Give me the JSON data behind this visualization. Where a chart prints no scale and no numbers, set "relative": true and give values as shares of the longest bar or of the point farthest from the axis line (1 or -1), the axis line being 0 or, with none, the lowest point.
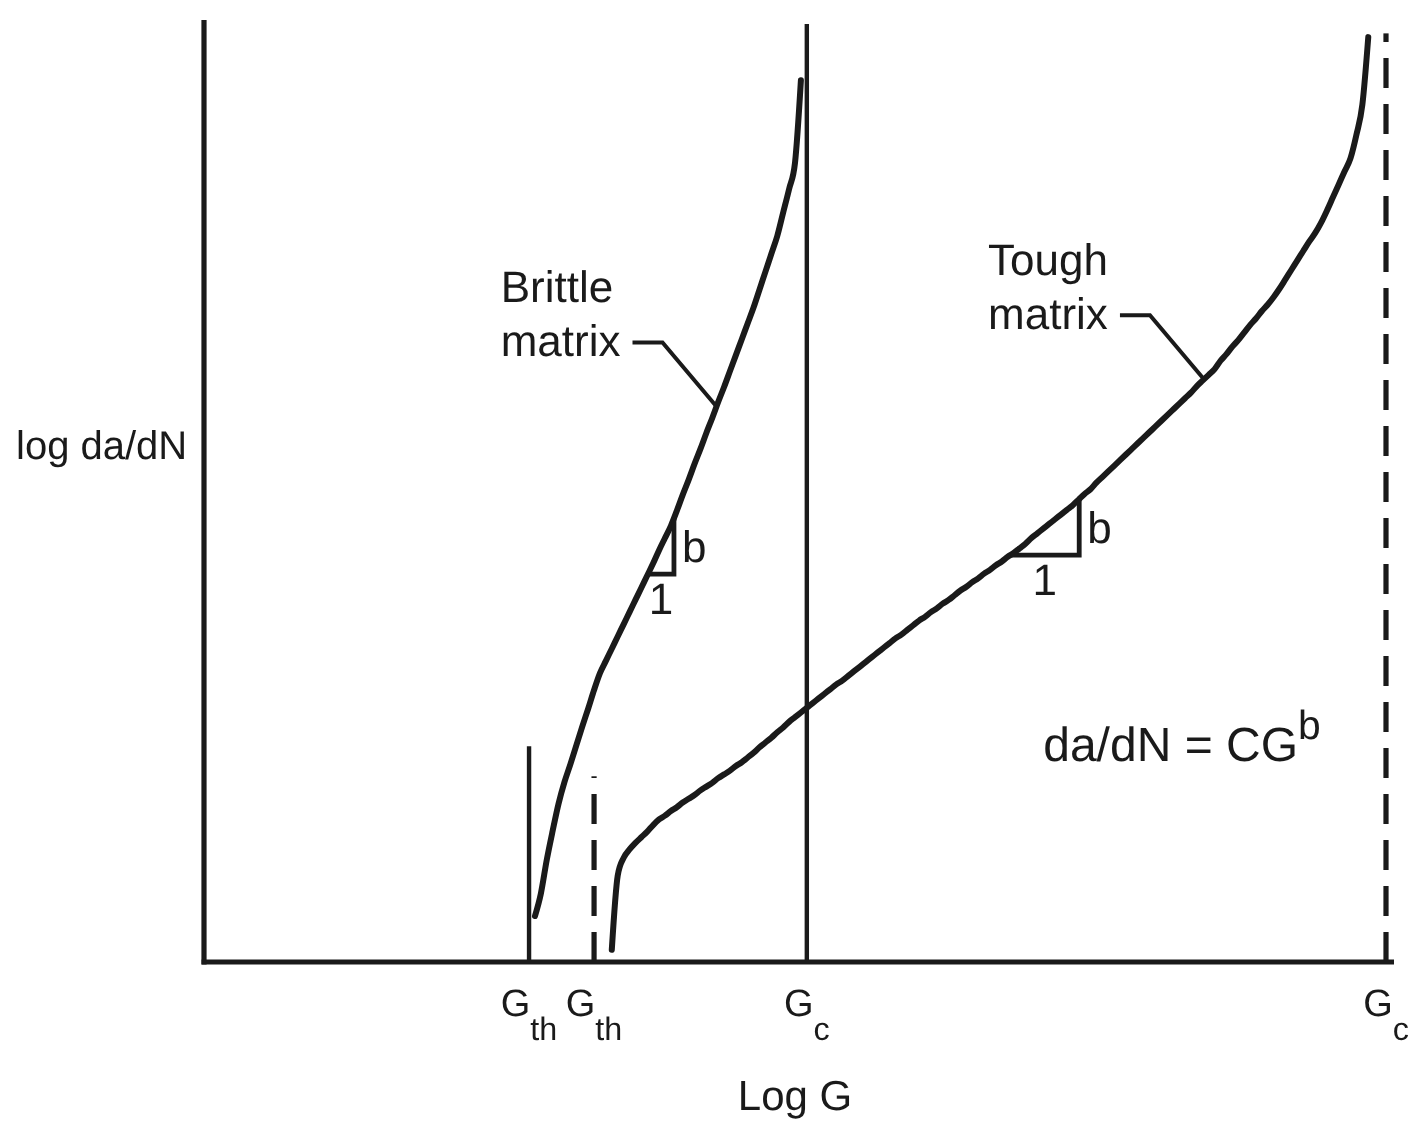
{
  "chart_data": {
    "type": "line",
    "relative": true,
    "xlabel": "Log G",
    "ylabel": "log da/dN",
    "categories": [
      null,
      null,
      null,
      null,
      null,
      null,
      null,
      null,
      null,
      null,
      null,
      null,
      null,
      null,
      null,
      null,
      null,
      null,
      null,
      null,
      null,
      null,
      null,
      null,
      null,
      null,
      null,
      null,
      null,
      null,
      null,
      null,
      null,
      null,
      null,
      null,
      null,
      null,
      null,
      null,
      null,
      null,
      null,
      null,
      null,
      null,
      null,
      null,
      null,
      null,
      null,
      null,
      null,
      null,
      null,
      "G$_{th}$",
      null,
      null,
      null,
      null,
      null,
      null,
      null,
      null,
      null,
      null,
      "G$_{th}$",
      null,
      null,
      null,
      null,
      null,
      null,
      null,
      null,
      null,
      null,
      null,
      null,
      null,
      null,
      null,
      null,
      null,
      null,
      null,
      null,
      null,
      null,
      null,
      null,
      null,
      null,
      null,
      null,
      null,
      null,
      null,
      null,
      null,
      null,
      null,
      "G$_{c}$",
      null,
      null,
      null,
      null,
      null,
      null,
      null,
      null,
      null,
      null,
      null,
      null,
      null,
      null,
      null,
      null,
      null,
      null,
      null,
      null,
      null,
      null,
      null,
      null,
      null,
      null,
      null,
      null,
      null,
      null,
      null,
      null,
      null,
      null,
      null,
      null,
      null,
      null,
      null,
      null,
      null,
      null,
      null,
      null,
      null,
      null,
      null,
      null,
      null,
      null,
      null,
      null,
      null,
      null,
      null,
      null,
      null,
      null,
      null,
      null,
      null,
      null,
      null,
      null,
      null,
      null,
      null,
      null,
      null,
      null,
      null,
      null,
      null,
      null,
      null,
      null,
      null,
      null,
      null,
      null,
      null,
      null,
      null,
      null,
      null,
      null,
      null,
      null,
      null,
      null,
      null,
      null,
      null,
      null,
      null,
      null,
      null,
      "G$_{c}$"
    ],
    "series": [
      {
        "name": "Brittle matrix",
        "color": "#1a1a1a",
        "values": [
          null,
          null,
          null,
          null,
          null,
          null,
          null,
          null,
          null,
          null,
          null,
          null,
          null,
          null,
          null,
          null,
          null,
          null,
          null,
          null,
          null,
          null,
          null,
          null,
          null,
          null,
          null,
          null,
          null,
          null,
          null,
          null,
          null,
          null,
          null,
          null,
          null,
          null,
          null,
          null,
          null,
          null,
          null,
          null,
          null,
          null,
          null,
          null,
          null,
          null,
          null,
          null,
          null,
          null,
          null,
          null,
          0.049,
          0.073,
          0.109,
          0.14,
          0.169,
          0.192,
          0.211,
          0.231,
          0.251,
          0.27,
          0.29,
          0.308,
          0.321,
          0.334,
          0.347,
          0.36,
          0.373,
          0.386,
          0.399,
          0.412,
          0.425,
          0.439,
          0.452,
          0.465,
          0.481,
          0.498,
          0.514,
          0.531,
          0.547,
          0.564,
          0.58,
          0.597,
          0.613,
          0.63,
          0.647,
          0.664,
          0.681,
          0.698,
          0.717,
          0.736,
          0.755,
          0.774,
          0.799,
          0.824,
          0.852,
          0.94,
          null,
          null,
          null,
          null,
          null,
          null,
          null,
          null,
          null,
          null,
          null,
          null,
          null,
          null,
          null,
          null,
          null,
          null,
          null,
          null,
          null,
          null,
          null,
          null,
          null,
          null,
          null,
          null,
          null,
          null,
          null,
          null,
          null,
          null,
          null,
          null,
          null,
          null,
          null,
          null,
          null,
          null,
          null,
          null,
          null,
          null,
          null,
          null,
          null,
          null,
          null,
          null,
          null,
          null,
          null,
          null,
          null,
          null,
          null,
          null,
          null,
          null,
          null,
          null,
          null,
          null,
          null,
          null,
          null,
          null,
          null,
          null,
          null,
          null,
          null,
          null,
          null,
          null,
          null,
          null,
          null,
          null,
          null,
          null,
          null,
          null,
          null,
          null,
          null,
          null,
          null,
          null,
          null,
          null,
          null,
          null,
          null,
          null,
          null
        ]
      },
      {
        "name": "Tough matrix",
        "color": "#1a1a1a",
        "values": [
          null,
          null,
          null,
          null,
          null,
          null,
          null,
          null,
          null,
          null,
          null,
          null,
          null,
          null,
          null,
          null,
          null,
          null,
          null,
          null,
          null,
          null,
          null,
          null,
          null,
          null,
          null,
          null,
          null,
          null,
          null,
          null,
          null,
          null,
          null,
          null,
          null,
          null,
          null,
          null,
          null,
          null,
          null,
          null,
          null,
          null,
          null,
          null,
          null,
          null,
          null,
          null,
          null,
          null,
          null,
          null,
          null,
          null,
          null,
          null,
          null,
          null,
          null,
          null,
          null,
          null,
          null,
          null,
          null,
          0.013,
          0.092,
          0.111,
          0.12,
          0.127,
          0.133,
          0.139,
          0.146,
          0.152,
          0.156,
          0.161,
          0.165,
          0.17,
          0.174,
          0.178,
          0.183,
          0.187,
          0.191,
          0.196,
          0.2,
          0.204,
          0.209,
          0.213,
          0.218,
          0.223,
          0.229,
          0.234,
          0.239,
          0.245,
          0.25,
          0.256,
          0.261,
          0.266,
          0.271,
          0.276,
          0.281,
          0.286,
          0.291,
          0.296,
          0.3,
          0.305,
          0.31,
          0.315,
          0.32,
          0.325,
          0.33,
          0.335,
          0.34,
          0.345,
          0.349,
          0.354,
          0.359,
          0.364,
          0.368,
          0.373,
          0.377,
          0.382,
          0.386,
          0.391,
          0.396,
          0.4,
          0.405,
          0.409,
          0.414,
          0.418,
          0.423,
          0.427,
          0.432,
          0.436,
          0.441,
          0.446,
          0.452,
          0.457,
          0.462,
          0.467,
          0.472,
          0.477,
          0.482,
          0.487,
          0.493,
          0.499,
          0.504,
          0.511,
          0.517,
          0.523,
          0.529,
          0.535,
          0.541,
          0.547,
          0.553,
          0.559,
          0.565,
          0.571,
          0.577,
          0.583,
          0.589,
          0.595,
          0.601,
          0.607,
          0.614,
          0.62,
          0.626,
          0.632,
          0.641,
          0.648,
          0.656,
          0.663,
          0.671,
          0.679,
          0.686,
          0.694,
          0.701,
          0.709,
          0.718,
          0.728,
          0.738,
          0.748,
          0.758,
          0.768,
          0.777,
          0.788,
          0.801,
          0.815,
          0.829,
          0.843,
          0.857,
          0.882,
          0.914,
          0.986,
          null,
          null,
          null
        ]
      },
      {
        "type": "bar",
        "color": "#1a1a1a",
        "values": [
          null,
          null,
          null,
          null,
          null,
          null,
          null,
          null,
          null,
          null,
          null,
          null,
          null,
          null,
          null,
          null,
          null,
          null,
          null,
          null,
          null,
          null,
          null,
          null,
          null,
          null,
          null,
          null,
          null,
          null,
          null,
          null,
          null,
          null,
          null,
          null,
          null,
          null,
          null,
          null,
          null,
          null,
          null,
          null,
          null,
          null,
          null,
          null,
          null,
          null,
          null,
          null,
          null,
          null,
          null,
          0.23,
          null,
          null,
          null,
          null,
          null,
          null,
          null,
          null,
          null,
          null,
          null,
          null,
          null,
          null,
          null,
          null,
          null,
          null,
          null,
          null,
          null,
          null,
          null,
          null,
          null,
          null,
          null,
          null,
          null,
          null,
          null,
          null,
          null,
          null,
          null,
          null,
          null,
          null,
          null,
          null,
          null,
          null,
          null,
          null,
          null,
          null,
          null,
          null,
          null,
          null,
          null,
          null,
          null,
          null,
          null,
          null,
          null,
          null,
          null,
          null,
          null,
          null,
          null,
          null,
          null,
          null,
          null,
          null,
          null,
          null,
          null,
          null,
          null,
          null,
          null,
          null,
          null,
          null,
          null,
          null,
          null,
          null,
          null,
          null,
          null,
          null,
          null,
          null,
          null,
          null,
          null,
          null,
          null,
          null,
          null,
          null,
          null,
          null,
          null,
          null,
          null,
          null,
          null,
          null,
          null,
          null,
          null,
          null,
          null,
          null,
          null,
          null,
          null,
          null,
          null,
          null,
          null,
          null,
          null,
          null,
          null,
          null,
          null,
          null,
          null,
          null,
          null,
          null,
          null,
          null,
          null,
          null,
          null,
          null,
          null,
          null,
          null,
          null,
          null,
          null,
          null,
          null,
          null,
          null,
          null
        ]
      },
      {
        "type": "bar",
        "color": "#1a1a1a",
        "line_style": "dashed",
        "values": [
          null,
          null,
          null,
          null,
          null,
          null,
          null,
          null,
          null,
          null,
          null,
          null,
          null,
          null,
          null,
          null,
          null,
          null,
          null,
          null,
          null,
          null,
          null,
          null,
          null,
          null,
          null,
          null,
          null,
          null,
          null,
          null,
          null,
          null,
          null,
          null,
          null,
          null,
          null,
          null,
          null,
          null,
          null,
          null,
          null,
          null,
          null,
          null,
          null,
          null,
          null,
          null,
          null,
          null,
          null,
          null,
          null,
          null,
          null,
          null,
          null,
          null,
          null,
          null,
          null,
          null,
          0.198,
          null,
          null,
          null,
          null,
          null,
          null,
          null,
          null,
          null,
          null,
          null,
          null,
          null,
          null,
          null,
          null,
          null,
          null,
          null,
          null,
          null,
          null,
          null,
          null,
          null,
          null,
          null,
          null,
          null,
          null,
          null,
          null,
          null,
          null,
          null,
          null,
          null,
          null,
          null,
          null,
          null,
          null,
          null,
          null,
          null,
          null,
          null,
          null,
          null,
          null,
          null,
          null,
          null,
          null,
          null,
          null,
          null,
          null,
          null,
          null,
          null,
          null,
          null,
          null,
          null,
          null,
          null,
          null,
          null,
          null,
          null,
          null,
          null,
          null,
          null,
          null,
          null,
          null,
          null,
          null,
          null,
          null,
          null,
          null,
          null,
          null,
          null,
          null,
          null,
          null,
          null,
          null,
          null,
          null,
          null,
          null,
          null,
          null,
          null,
          null,
          null,
          null,
          null,
          null,
          null,
          null,
          null,
          null,
          null,
          null,
          null,
          null,
          null,
          null,
          null,
          null,
          null,
          null,
          null,
          null,
          null,
          null,
          null,
          null,
          null,
          null,
          null,
          null,
          null,
          null,
          null,
          null,
          null,
          null
        ]
      },
      {
        "type": "bar",
        "color": "#1a1a1a",
        "values": [
          null,
          null,
          null,
          null,
          null,
          null,
          null,
          null,
          null,
          null,
          null,
          null,
          null,
          null,
          null,
          null,
          null,
          null,
          null,
          null,
          null,
          null,
          null,
          null,
          null,
          null,
          null,
          null,
          null,
          null,
          null,
          null,
          null,
          null,
          null,
          null,
          null,
          null,
          null,
          null,
          null,
          null,
          null,
          null,
          null,
          null,
          null,
          null,
          null,
          null,
          null,
          null,
          null,
          null,
          null,
          null,
          null,
          null,
          null,
          null,
          null,
          null,
          null,
          null,
          null,
          null,
          null,
          null,
          null,
          null,
          null,
          null,
          null,
          null,
          null,
          null,
          null,
          null,
          null,
          null,
          null,
          null,
          null,
          null,
          null,
          null,
          null,
          null,
          null,
          null,
          null,
          null,
          null,
          null,
          null,
          null,
          null,
          null,
          null,
          null,
          null,
          null,
          1,
          null,
          null,
          null,
          null,
          null,
          null,
          null,
          null,
          null,
          null,
          null,
          null,
          null,
          null,
          null,
          null,
          null,
          null,
          null,
          null,
          null,
          null,
          null,
          null,
          null,
          null,
          null,
          null,
          null,
          null,
          null,
          null,
          null,
          null,
          null,
          null,
          null,
          null,
          null,
          null,
          null,
          null,
          null,
          null,
          null,
          null,
          null,
          null,
          null,
          null,
          null,
          null,
          null,
          null,
          null,
          null,
          null,
          null,
          null,
          null,
          null,
          null,
          null,
          null,
          null,
          null,
          null,
          null,
          null,
          null,
          null,
          null,
          null,
          null,
          null,
          null,
          null,
          null,
          null,
          null,
          null,
          null,
          null,
          null,
          null,
          null,
          null,
          null,
          null,
          null,
          null,
          null,
          null,
          null,
          null,
          null,
          null,
          null
        ]
      },
      {
        "type": "bar",
        "color": "#1a1a1a",
        "line_style": "dashed",
        "values": [
          null,
          null,
          null,
          null,
          null,
          null,
          null,
          null,
          null,
          null,
          null,
          null,
          null,
          null,
          null,
          null,
          null,
          null,
          null,
          null,
          null,
          null,
          null,
          null,
          null,
          null,
          null,
          null,
          null,
          null,
          null,
          null,
          null,
          null,
          null,
          null,
          null,
          null,
          null,
          null,
          null,
          null,
          null,
          null,
          null,
          null,
          null,
          null,
          null,
          null,
          null,
          null,
          null,
          null,
          null,
          null,
          null,
          null,
          null,
          null,
          null,
          null,
          null,
          null,
          null,
          null,
          null,
          null,
          null,
          null,
          null,
          null,
          null,
          null,
          null,
          null,
          null,
          null,
          null,
          null,
          null,
          null,
          null,
          null,
          null,
          null,
          null,
          null,
          null,
          null,
          null,
          null,
          null,
          null,
          null,
          null,
          null,
          null,
          null,
          null,
          null,
          null,
          null,
          null,
          null,
          null,
          null,
          null,
          null,
          null,
          null,
          null,
          null,
          null,
          null,
          null,
          null,
          null,
          null,
          null,
          null,
          null,
          null,
          null,
          null,
          null,
          null,
          null,
          null,
          null,
          null,
          null,
          null,
          null,
          null,
          null,
          null,
          null,
          null,
          null,
          null,
          null,
          null,
          null,
          null,
          null,
          null,
          null,
          null,
          null,
          null,
          null,
          null,
          null,
          null,
          null,
          null,
          null,
          null,
          null,
          null,
          null,
          null,
          null,
          null,
          null,
          null,
          null,
          null,
          null,
          null,
          null,
          null,
          null,
          null,
          null,
          null,
          null,
          null,
          null,
          null,
          null,
          null,
          null,
          null,
          null,
          null,
          null,
          null,
          null,
          null,
          null,
          null,
          null,
          null,
          null,
          null,
          null,
          null,
          null,
          0.99
        ]
      }
    ],
    "annotations": [
      "b",
      "1",
      "b",
      "1",
      "da/dN = CG$^{b}$"
    ]
  }
}
